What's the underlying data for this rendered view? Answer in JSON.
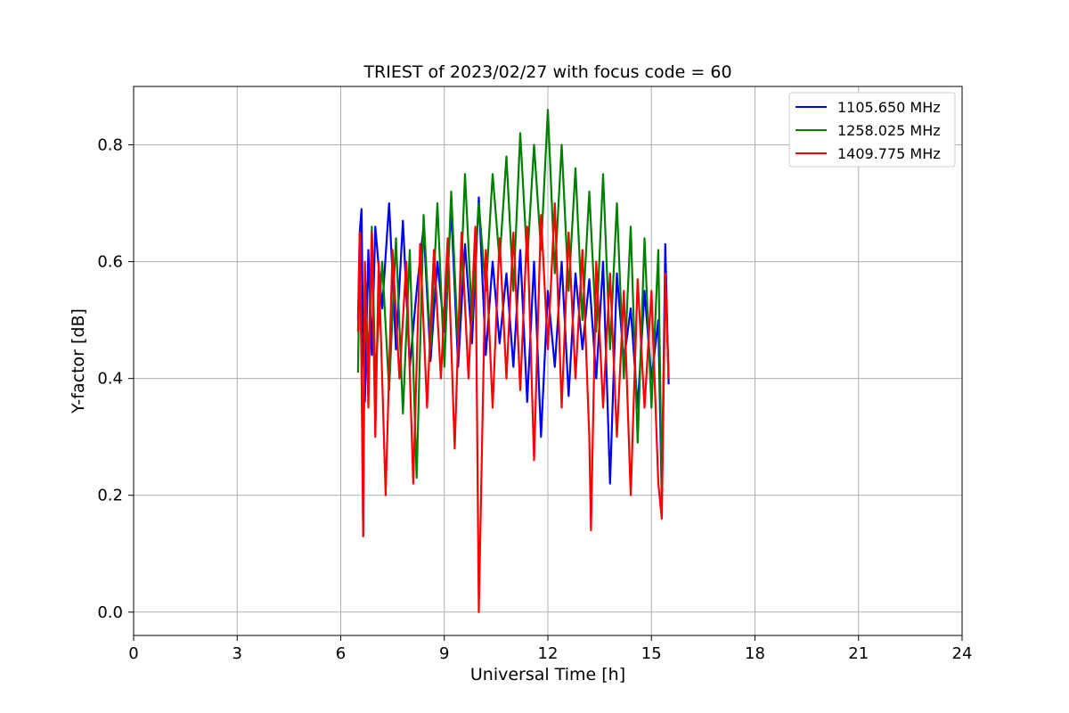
{
  "chart_data": {
    "type": "line",
    "title": "TRIEST of 2023/02/27 with focus code = 60",
    "xlabel": "Universal Time [h]",
    "ylabel": "Y-factor [dB]",
    "xlim": [
      0,
      24
    ],
    "ylim": [
      -0.04,
      0.9
    ],
    "xticks": [
      0,
      3,
      6,
      9,
      12,
      15,
      18,
      21,
      24
    ],
    "yticks": [
      0.0,
      0.2,
      0.4,
      0.6,
      0.8
    ],
    "xtick_labels": [
      "0",
      "3",
      "6",
      "9",
      "12",
      "15",
      "18",
      "21",
      "24"
    ],
    "ytick_labels": [
      "0.0",
      "0.2",
      "0.4",
      "0.6",
      "0.8"
    ],
    "grid": true,
    "legend_position": "top-right",
    "series": [
      {
        "name": "1105.650 MHz",
        "color": "#0000ff",
        "x": [
          6.5,
          6.55,
          6.6,
          6.65,
          6.7,
          6.8,
          6.9,
          7.0,
          7.2,
          7.4,
          7.6,
          7.8,
          8.0,
          8.2,
          8.4,
          8.6,
          8.8,
          9.0,
          9.2,
          9.4,
          9.6,
          9.8,
          10.0,
          10.2,
          10.4,
          10.6,
          10.8,
          11.0,
          11.2,
          11.4,
          11.6,
          11.8,
          12.0,
          12.2,
          12.4,
          12.6,
          12.8,
          13.0,
          13.2,
          13.4,
          13.6,
          13.8,
          14.0,
          14.2,
          14.4,
          14.6,
          14.8,
          15.0,
          15.2,
          15.3,
          15.4,
          15.5
        ],
        "values": [
          0.5,
          0.65,
          0.69,
          0.45,
          0.36,
          0.62,
          0.44,
          0.66,
          0.52,
          0.7,
          0.45,
          0.67,
          0.42,
          0.55,
          0.66,
          0.43,
          0.6,
          0.48,
          0.69,
          0.42,
          0.63,
          0.46,
          0.71,
          0.44,
          0.6,
          0.46,
          0.58,
          0.42,
          0.62,
          0.36,
          0.6,
          0.3,
          0.55,
          0.42,
          0.6,
          0.37,
          0.58,
          0.45,
          0.57,
          0.4,
          0.6,
          0.22,
          0.58,
          0.43,
          0.52,
          0.35,
          0.55,
          0.4,
          0.5,
          0.19,
          0.63,
          0.39
        ]
      },
      {
        "name": "1258.025 MHz",
        "color": "#008000",
        "x": [
          6.5,
          6.55,
          6.6,
          6.65,
          6.7,
          6.8,
          6.9,
          7.0,
          7.2,
          7.4,
          7.6,
          7.8,
          8.0,
          8.2,
          8.4,
          8.6,
          8.8,
          9.0,
          9.2,
          9.4,
          9.6,
          9.8,
          10.0,
          10.2,
          10.4,
          10.6,
          10.8,
          11.0,
          11.2,
          11.4,
          11.6,
          11.8,
          12.0,
          12.2,
          12.4,
          12.6,
          12.8,
          13.0,
          13.2,
          13.4,
          13.6,
          13.8,
          14.0,
          14.2,
          14.4,
          14.6,
          14.8,
          15.0,
          15.2,
          15.3,
          15.4,
          15.5
        ],
        "values": [
          0.41,
          0.63,
          0.45,
          0.13,
          0.58,
          0.42,
          0.66,
          0.4,
          0.6,
          0.38,
          0.64,
          0.34,
          0.62,
          0.23,
          0.68,
          0.45,
          0.7,
          0.42,
          0.72,
          0.45,
          0.75,
          0.5,
          0.7,
          0.55,
          0.75,
          0.6,
          0.78,
          0.55,
          0.82,
          0.6,
          0.8,
          0.62,
          0.86,
          0.58,
          0.8,
          0.55,
          0.76,
          0.5,
          0.72,
          0.48,
          0.75,
          0.45,
          0.7,
          0.4,
          0.66,
          0.29,
          0.64,
          0.35,
          0.62,
          0.2,
          0.58,
          0.4
        ]
      },
      {
        "name": "1409.775 MHz",
        "color": "#ff0000",
        "x": [
          6.5,
          6.55,
          6.6,
          6.65,
          6.7,
          6.8,
          6.9,
          7.0,
          7.1,
          7.3,
          7.5,
          7.7,
          7.9,
          8.1,
          8.3,
          8.5,
          8.7,
          8.9,
          9.1,
          9.3,
          9.5,
          9.7,
          9.9,
          10.0,
          10.2,
          10.4,
          10.6,
          10.8,
          11.0,
          11.2,
          11.4,
          11.6,
          11.8,
          12.0,
          12.2,
          12.4,
          12.6,
          12.8,
          13.0,
          13.2,
          13.25,
          13.4,
          13.6,
          13.8,
          14.0,
          14.2,
          14.4,
          14.6,
          14.8,
          15.0,
          15.2,
          15.3,
          15.4,
          15.5
        ],
        "values": [
          0.48,
          0.65,
          0.42,
          0.13,
          0.6,
          0.35,
          0.65,
          0.3,
          0.6,
          0.2,
          0.62,
          0.4,
          0.6,
          0.22,
          0.63,
          0.35,
          0.62,
          0.4,
          0.64,
          0.28,
          0.65,
          0.4,
          0.66,
          0.0,
          0.62,
          0.35,
          0.64,
          0.4,
          0.65,
          0.38,
          0.66,
          0.26,
          0.68,
          0.45,
          0.7,
          0.35,
          0.65,
          0.4,
          0.62,
          0.3,
          0.14,
          0.6,
          0.35,
          0.58,
          0.3,
          0.55,
          0.2,
          0.57,
          0.35,
          0.55,
          0.22,
          0.16,
          0.58,
          0.4
        ]
      }
    ]
  }
}
